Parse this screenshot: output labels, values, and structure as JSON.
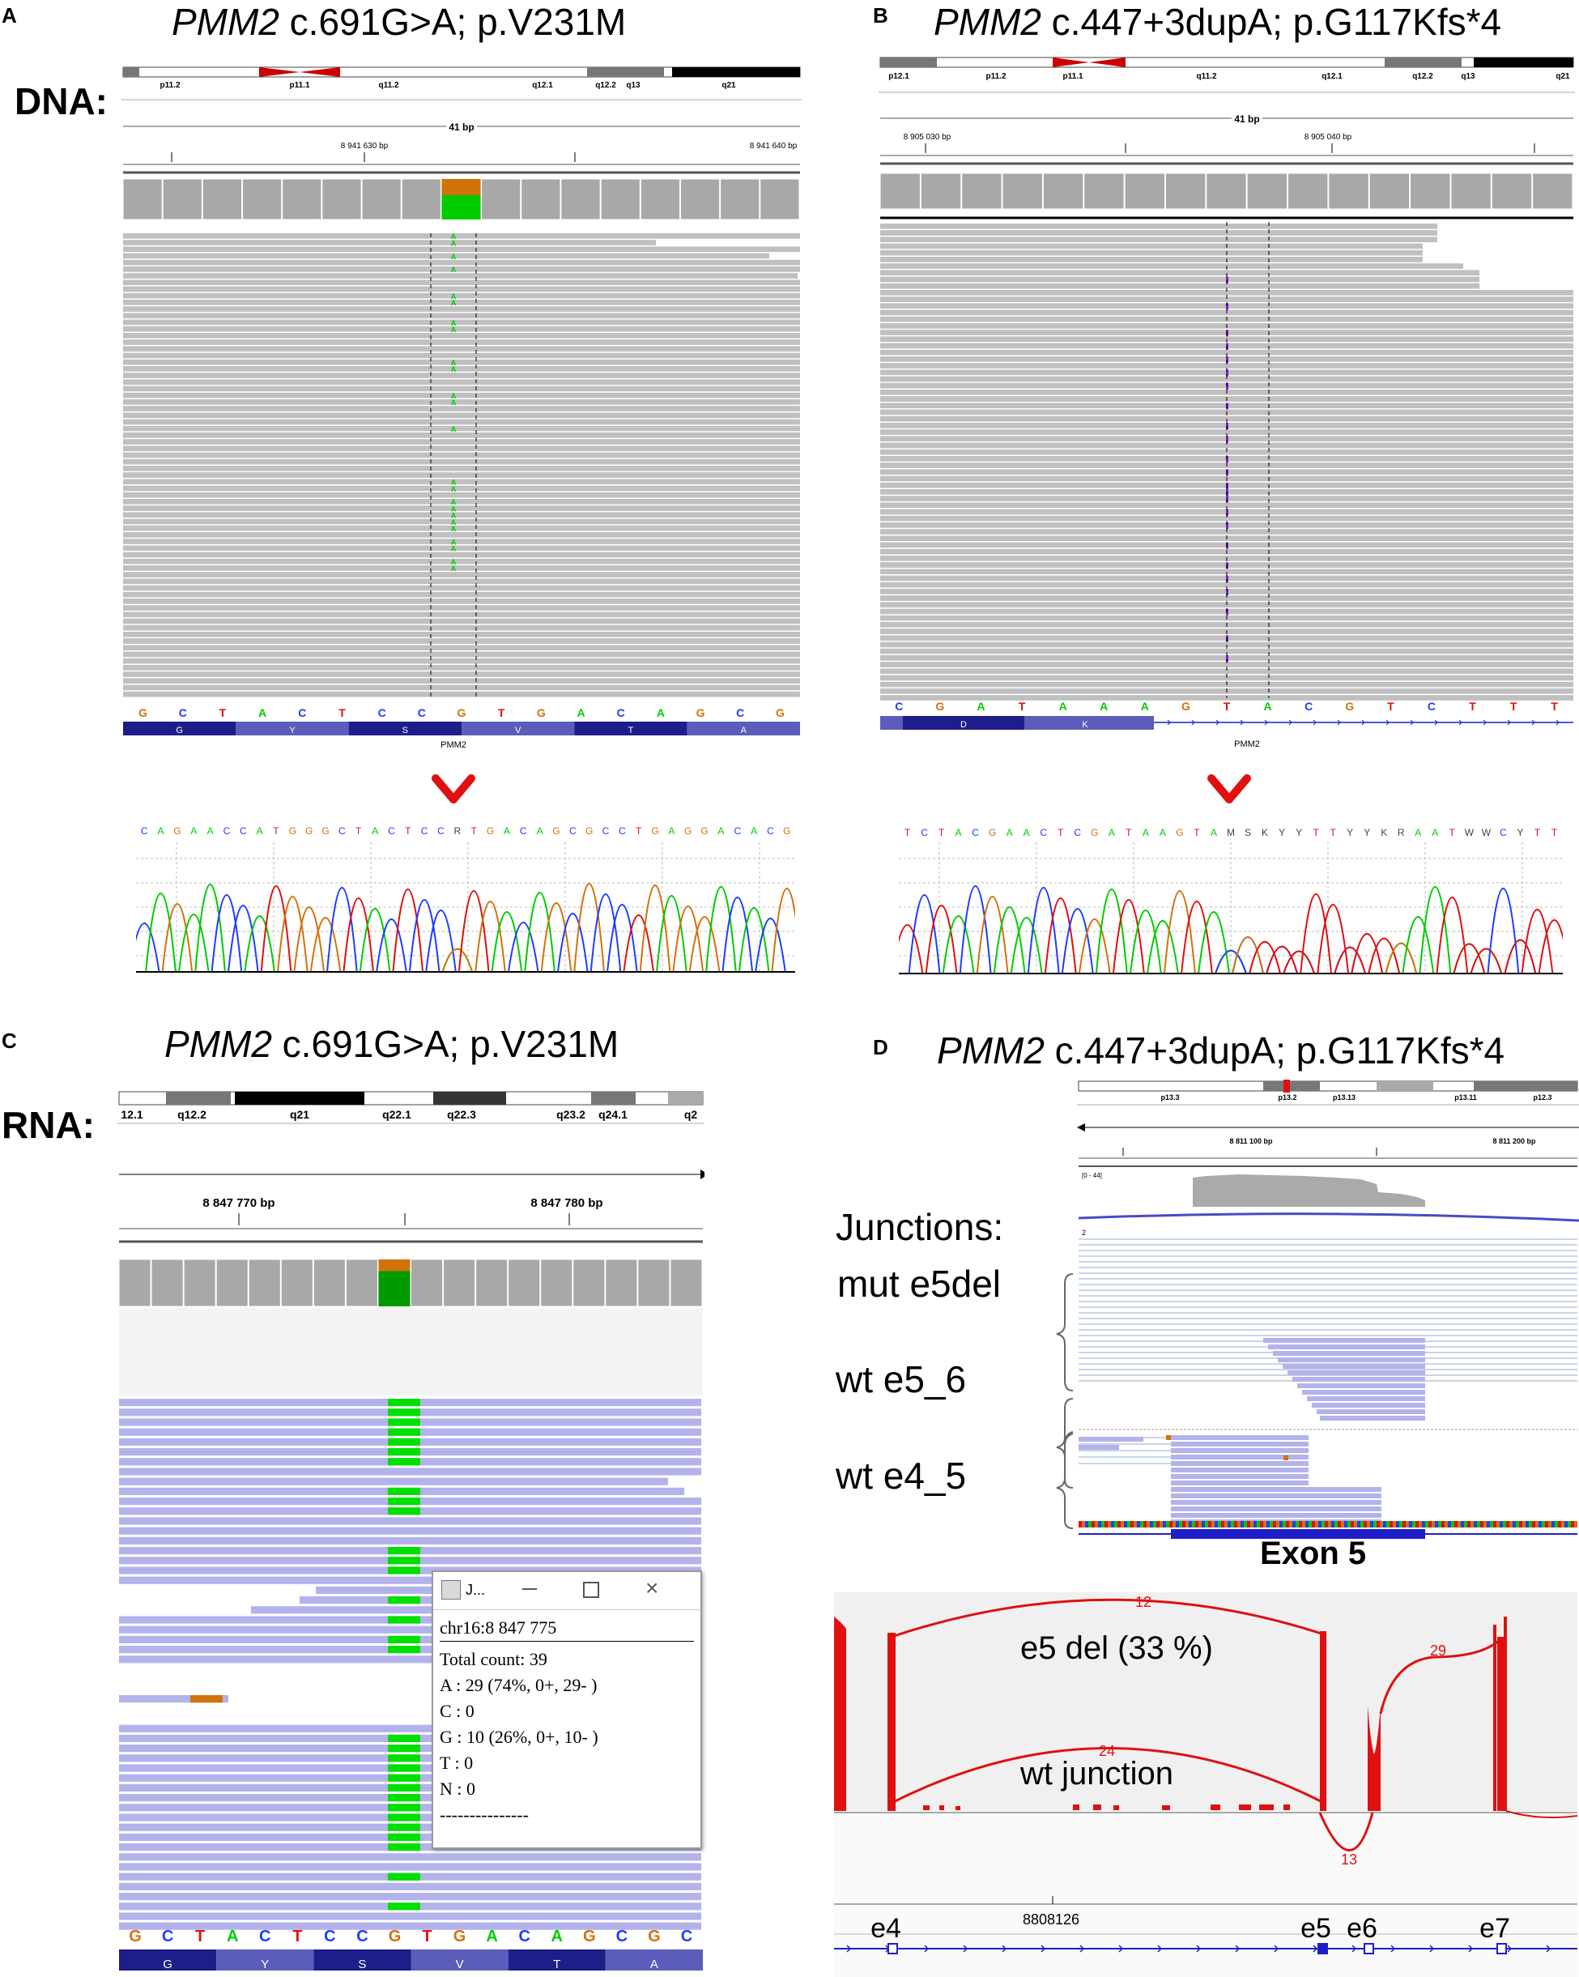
{
  "panels": {
    "A": {
      "letter": "A",
      "gene": "PMM2",
      "title": " c.691G>A;  p.V231M",
      "side_label": "DNA:",
      "ideogram": [
        "p11.2",
        "p11.1",
        "q11.2",
        "q12.1",
        "q12.2",
        "q13",
        "q21"
      ],
      "span": "41 bp",
      "coord_left": "8 941 630 bp",
      "coord_right": "8 941 640 bp",
      "allele": "A",
      "sequence": [
        "G",
        "C",
        "T",
        "A",
        "C",
        "T",
        "C",
        "C",
        "G",
        "T",
        "G",
        "A",
        "C",
        "A",
        "G",
        "C",
        "G"
      ],
      "aa": [
        "G",
        "Y",
        "S",
        "V",
        "T",
        "A"
      ],
      "gene_label": "PMM2",
      "chromatogram": [
        "C",
        "A",
        "G",
        "A",
        "A",
        "C",
        "C",
        "A",
        "T",
        "G",
        "G",
        "G",
        "C",
        "T",
        "A",
        "C",
        "T",
        "C",
        "C",
        "R",
        "T",
        "G",
        "A",
        "C",
        "A",
        "G",
        "C",
        "G",
        "C",
        "C",
        "T",
        "G",
        "A",
        "G",
        "G",
        "A",
        "C",
        "A",
        "C",
        "G"
      ]
    },
    "B": {
      "letter": "B",
      "gene": "PMM2",
      "title": " c.447+3dupA; p.G117Kfs*4",
      "ideogram": [
        "p12.1",
        "p11.2",
        "p11.1",
        "q11.2",
        "q12.1",
        "q12.2",
        "q13",
        "q21"
      ],
      "span": "41 bp",
      "coord_left": "8 905 030 bp",
      "coord_right": "8 905 040 bp",
      "allele": "T",
      "sequence": [
        "C",
        "G",
        "A",
        "T",
        "A",
        "A",
        "A",
        "G",
        "T",
        "A",
        "C",
        "G",
        "T",
        "C",
        "T",
        "T",
        "T"
      ],
      "aa": [
        "D",
        "K"
      ],
      "gene_label": "PMM2",
      "chromatogram": [
        "T",
        "C",
        "T",
        "A",
        "C",
        "G",
        "A",
        "A",
        "C",
        "T",
        "C",
        "G",
        "A",
        "T",
        "A",
        "A",
        "G",
        "T",
        "A",
        "M",
        "S",
        "K",
        "Y",
        "Y",
        "T",
        "T",
        "Y",
        "Y",
        "K",
        "R",
        "A",
        "A",
        "T",
        "W",
        "W",
        "C",
        "Y",
        "T",
        "T"
      ]
    },
    "C": {
      "letter": "C",
      "gene": "PMM2",
      "title": " c.691G>A;  p.V231M",
      "side_label": "RNA:",
      "ideogram": [
        "12.1",
        "q12.2",
        "q21",
        "q22.1",
        "q22.3",
        "q23.2",
        "q24.1",
        "q2"
      ],
      "coord_left": "8 847 770 bp",
      "coord_right": "8 847 780 bp",
      "sequence": [
        "G",
        "C",
        "T",
        "A",
        "C",
        "T",
        "C",
        "C",
        "G",
        "T",
        "G",
        "A",
        "C",
        "A",
        "G",
        "C",
        "G",
        "C"
      ],
      "aa": [
        "G",
        "Y",
        "S",
        "V",
        "T",
        "A"
      ],
      "popup": {
        "title": "J...",
        "locus": "chr16:8 847 775",
        "total": "Total count: 39",
        "A": "A : 29 (74%, 0+, 29- )",
        "C": "C : 0",
        "G": "G : 10 (26%, 0+, 10- )",
        "T": "T : 0",
        "N": "N : 0",
        "sep": "---------------"
      }
    },
    "D": {
      "letter": "D",
      "gene": "PMM2",
      "title": " c.447+3dupA; p.G117Kfs*4",
      "ideogram": [
        "p13.3",
        "p13.2",
        "p13.13",
        "p13.11",
        "p12.3"
      ],
      "coord_left": "8 811 100 bp",
      "coord_right": "8 811 200 bp",
      "range": "[0 - 44]",
      "track_num": "2",
      "junctions_title": "Junctions:",
      "junction_labels": [
        "mut e5del",
        "wt e5_6",
        "wt e4_5"
      ],
      "exon_label": "Exon 5",
      "sashimi": {
        "counts": [
          "12",
          "29",
          "24",
          "13"
        ],
        "del_label": "e5 del (33 %)",
        "wt_label": "wt junction",
        "coord": "8808126",
        "exons": [
          "e4",
          "e5",
          "e6",
          "e7"
        ]
      }
    }
  },
  "colors": {
    "A": "#00cc00",
    "C": "#1f3cff",
    "G": "#d1730a",
    "T": "#e01010",
    "read_gray": "#c0c0c0",
    "rna_read": "#b3b3ec",
    "sashimi": "#e01010",
    "track": "#1e1ec8"
  }
}
